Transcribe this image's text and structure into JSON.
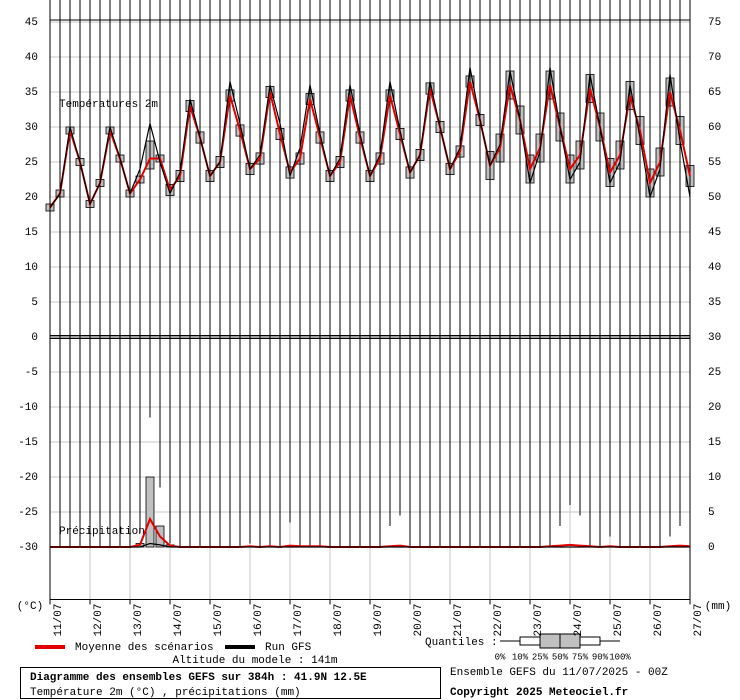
{
  "chart_data": {
    "type": "ensemble",
    "title": "Diagramme des ensembles GEFS sur 384h : 41.9N 12.5E",
    "subtitle": "Température 2m (°C) , précipitations (mm)",
    "ylabel": "(°C)",
    "y2label": "(mm)",
    "annotations": [
      "Températures 2m",
      "Précipitations"
    ],
    "model_altitude": "Altitude du modele : 141m",
    "run": "Ensemble GEFS du 11/07/2025 - 00Z",
    "copyright": "Copyright 2025 Meteociel.fr",
    "quantiles_label": "Quantiles :",
    "quantile_ticks": [
      "0%",
      "10%",
      "25%",
      "50%",
      "75%",
      "90%",
      "100%"
    ],
    "grid": true,
    "box_color": "#c0c0c0",
    "xlim": [
      0,
      16
    ],
    "xticks": [
      {
        "value": 0,
        "label": "11/07"
      },
      {
        "value": 1,
        "label": "12/07"
      },
      {
        "value": 2,
        "label": "13/07"
      },
      {
        "value": 3,
        "label": "14/07"
      },
      {
        "value": 4,
        "label": "15/07"
      },
      {
        "value": 5,
        "label": "16/07"
      },
      {
        "value": 6,
        "label": "17/07"
      },
      {
        "value": 7,
        "label": "18/07"
      },
      {
        "value": 8,
        "label": "19/07"
      },
      {
        "value": 9,
        "label": "20/07"
      },
      {
        "value": 10,
        "label": "21/07"
      },
      {
        "value": 11,
        "label": "22/07"
      },
      {
        "value": 12,
        "label": "23/07"
      },
      {
        "value": 13,
        "label": "24/07"
      },
      {
        "value": 14,
        "label": "25/07"
      },
      {
        "value": 15,
        "label": "26/07"
      },
      {
        "value": 16,
        "label": "27/07"
      }
    ],
    "ylim": [
      -37.5,
      45
    ],
    "yticks": [
      45,
      40,
      35,
      30,
      25,
      20,
      15,
      10,
      5,
      0,
      -5,
      -10,
      -15,
      -20,
      -25,
      -30
    ],
    "y2lim": [
      -7.5,
      75
    ],
    "y2ticks": [
      75,
      70,
      65,
      60,
      55,
      50,
      45,
      40,
      35,
      30,
      25,
      20,
      15,
      10,
      5,
      0
    ],
    "x": [
      0,
      0.25,
      0.5,
      0.75,
      1,
      1.25,
      1.5,
      1.75,
      2,
      2.25,
      2.5,
      2.75,
      3,
      3.25,
      3.5,
      3.75,
      4,
      4.25,
      4.5,
      4.75,
      5,
      5.25,
      5.5,
      5.75,
      6,
      6.25,
      6.5,
      6.75,
      7,
      7.25,
      7.5,
      7.75,
      8,
      8.25,
      8.5,
      8.75,
      9,
      9.25,
      9.5,
      9.75,
      10,
      10.25,
      10.5,
      10.75,
      11,
      11.25,
      11.5,
      11.75,
      12,
      12.25,
      12.5,
      12.75,
      13,
      13.25,
      13.5,
      13.75,
      14,
      14.25,
      14.5,
      14.75,
      15,
      15.25,
      15.5,
      15.75,
      16
    ],
    "series": [
      {
        "name": "Moyenne des scénarios",
        "color": "#e00000",
        "values": [
          18.5,
          20.5,
          29.5,
          25,
          19,
          22,
          29.5,
          25.5,
          20.5,
          22.5,
          25.5,
          25.5,
          21,
          23,
          33,
          28.5,
          23,
          25,
          34.5,
          29.5,
          24,
          25.5,
          35,
          29,
          23.5,
          25.5,
          34,
          28.5,
          23,
          25,
          34.5,
          28.5,
          23,
          25.5,
          34.5,
          29,
          23.5,
          26,
          35.5,
          30,
          24,
          26.5,
          36.5,
          31,
          24.5,
          27,
          36,
          31,
          24,
          27,
          36,
          30,
          24,
          26,
          35.5,
          30,
          23.5,
          26,
          34.5,
          29.5,
          22,
          25,
          35,
          29.5,
          23
        ]
      },
      {
        "name": "Run GFS",
        "color": "#000000",
        "values": [
          18.5,
          20.5,
          30,
          25,
          19,
          22,
          30,
          25.5,
          20.5,
          24,
          30.5,
          25,
          20.5,
          23.5,
          34,
          28.5,
          23,
          25,
          36.5,
          30.5,
          24,
          26,
          36,
          30.5,
          23,
          27,
          36,
          29,
          23,
          25.5,
          36,
          29,
          23,
          26,
          36.5,
          29.5,
          23.5,
          26,
          36.5,
          30,
          24,
          27,
          38.5,
          31,
          24.5,
          27.5,
          38,
          31,
          22,
          26.5,
          38.5,
          30,
          22.5,
          25,
          37.5,
          30,
          22,
          25,
          36,
          28.5,
          20,
          24,
          37.5,
          28,
          20
        ]
      }
    ],
    "temp_quantiles": {
      "q25": [
        18,
        20,
        29,
        24.5,
        18.5,
        21.5,
        29,
        25,
        20,
        22,
        24,
        25,
        20.2,
        22.2,
        32.2,
        27.7,
        22.2,
        24.2,
        33.7,
        28.7,
        23.2,
        24.7,
        34.2,
        28.2,
        22.7,
        24.7,
        33.2,
        27.7,
        22.2,
        24.2,
        33.7,
        27.7,
        22.2,
        24.7,
        33.7,
        28.2,
        22.7,
        25.2,
        34.7,
        29.2,
        23.2,
        25.7,
        35.7,
        30.2,
        22.5,
        25,
        34,
        29,
        22,
        25,
        34,
        28,
        22,
        24,
        33.5,
        28,
        21.5,
        24,
        32.5,
        27.5,
        20,
        23,
        33,
        27.5,
        21.5
      ],
      "q75": [
        19,
        21,
        30,
        25.5,
        19.5,
        22.5,
        30,
        26,
        21,
        23,
        28,
        26,
        21.8,
        23.8,
        33.8,
        29.3,
        23.8,
        25.8,
        35.3,
        30.3,
        24.8,
        26.3,
        35.8,
        29.8,
        24.3,
        26.3,
        34.8,
        29.3,
        23.8,
        25.8,
        35.3,
        29.3,
        23.8,
        26.3,
        35.3,
        29.8,
        24.3,
        26.8,
        36.3,
        30.8,
        24.8,
        27.3,
        37.3,
        31.8,
        26.5,
        29,
        38,
        33,
        26,
        29,
        38,
        32,
        26,
        28,
        37.5,
        32,
        25.5,
        28,
        36.5,
        31.5,
        24,
        27,
        37,
        31.5,
        24.5
      ],
      "min": [
        17.5,
        19.5,
        28.5,
        24,
        18,
        21,
        28.5,
        24.5,
        19.5,
        21,
        21,
        23,
        19,
        21.5,
        31,
        27,
        21.5,
        23.5,
        32,
        27.5,
        22.5,
        24,
        32.5,
        27,
        20.5,
        22.5,
        31.5,
        26,
        21.5,
        23,
        32,
        26.5,
        21.5,
        23.5,
        32,
        27,
        21,
        24,
        33,
        28,
        22.5,
        24.5,
        34,
        29,
        20.5,
        23,
        32,
        27,
        18.5,
        22,
        31,
        25,
        19,
        21,
        31,
        25.5,
        18.5,
        21,
        30,
        24.5,
        19.5,
        20,
        30.5,
        25.5,
        19
      ],
      "max": [
        19.5,
        21.5,
        30.5,
        26,
        20,
        23,
        31,
        26.5,
        21.5,
        24,
        31,
        27.5,
        22,
        24.5,
        35,
        30,
        24,
        26.5,
        37,
        32,
        25.5,
        27.5,
        37.5,
        32,
        25.5,
        27.5,
        37,
        31,
        24.5,
        27,
        36.5,
        31,
        24.5,
        27,
        37,
        31.5,
        25,
        27.5,
        39,
        32.5,
        25.5,
        28.5,
        40,
        33,
        28.5,
        31,
        40.5,
        35,
        28,
        31,
        42,
        34,
        28,
        31,
        41.5,
        34,
        27.5,
        30,
        41,
        34,
        27,
        29,
        38.5,
        34.5,
        26.5
      ]
    },
    "precip_series": [
      {
        "color": "#e00000",
        "axis": "y2",
        "values": [
          0,
          0,
          0,
          0,
          0,
          0,
          0,
          0,
          0,
          0.3,
          4,
          1.5,
          0.2,
          0,
          0,
          0,
          0,
          0,
          0,
          0,
          0.1,
          0,
          0.1,
          0,
          0.2,
          0.1,
          0.1,
          0.1,
          0,
          0,
          0,
          0,
          0,
          0,
          0.1,
          0.2,
          0,
          0,
          0,
          0,
          0,
          0,
          0,
          0,
          0,
          0,
          0,
          0,
          0,
          0,
          0.1,
          0.2,
          0.3,
          0.2,
          0.1,
          0,
          0.1,
          0,
          0,
          0,
          0,
          0,
          0.1,
          0.2,
          0.1
        ]
      },
      {
        "color": "#000000",
        "axis": "y2",
        "values": [
          0,
          0,
          0,
          0,
          0,
          0,
          0,
          0,
          0,
          0,
          0.5,
          0.3,
          0,
          0,
          0,
          0,
          0,
          0,
          0,
          0,
          0,
          0,
          0,
          0,
          0,
          0,
          0,
          0,
          0,
          0,
          0,
          0,
          0,
          0,
          0,
          0,
          0,
          0,
          0,
          0,
          0,
          0,
          0,
          0,
          0,
          0,
          0,
          0,
          0,
          0,
          0,
          0,
          0,
          0,
          0,
          0,
          0,
          0,
          0,
          0,
          0,
          0,
          0,
          0,
          0
        ]
      }
    ],
    "precip_quantiles": {
      "q25": [
        0,
        0,
        0,
        0,
        0,
        0,
        0,
        0,
        0,
        0,
        0,
        0,
        0,
        0,
        0,
        0,
        0,
        0,
        0,
        0,
        0,
        0,
        0,
        0,
        0,
        0,
        0,
        0,
        0,
        0,
        0,
        0,
        0,
        0,
        0,
        0,
        0,
        0,
        0,
        0,
        0,
        0,
        0,
        0,
        0,
        0,
        0,
        0,
        0,
        0,
        0,
        0,
        0,
        0,
        0,
        0,
        0,
        0,
        0,
        0,
        0,
        0,
        0,
        0,
        0
      ],
      "q75": [
        0,
        0,
        0,
        0,
        0,
        0,
        0,
        0,
        0,
        0.5,
        10,
        3,
        0.3,
        0,
        0,
        0,
        0,
        0,
        0,
        0,
        0,
        0,
        0,
        0,
        0,
        0,
        0,
        0,
        0,
        0,
        0,
        0,
        0,
        0,
        0,
        0,
        0,
        0,
        0,
        0,
        0,
        0,
        0,
        0,
        0,
        0,
        0,
        0,
        0,
        0,
        0,
        0,
        0,
        0,
        0,
        0,
        0,
        0,
        0,
        0,
        0,
        0,
        0,
        0,
        0
      ],
      "max": [
        0,
        0,
        0,
        0,
        0,
        0,
        0,
        0,
        0,
        2,
        18.5,
        8.5,
        0.5,
        0,
        0,
        0,
        0,
        0,
        0,
        0,
        0.5,
        0,
        0,
        0,
        3.5,
        0,
        0,
        0,
        0,
        0,
        0,
        0,
        0,
        0,
        3,
        4.5,
        0,
        0,
        0,
        0,
        0,
        0,
        0,
        0,
        0,
        0,
        0,
        0,
        0,
        0,
        0,
        3,
        6,
        4.5,
        0,
        0,
        1.5,
        0,
        0,
        0,
        0,
        0,
        1.5,
        3,
        0.5
      ]
    }
  }
}
